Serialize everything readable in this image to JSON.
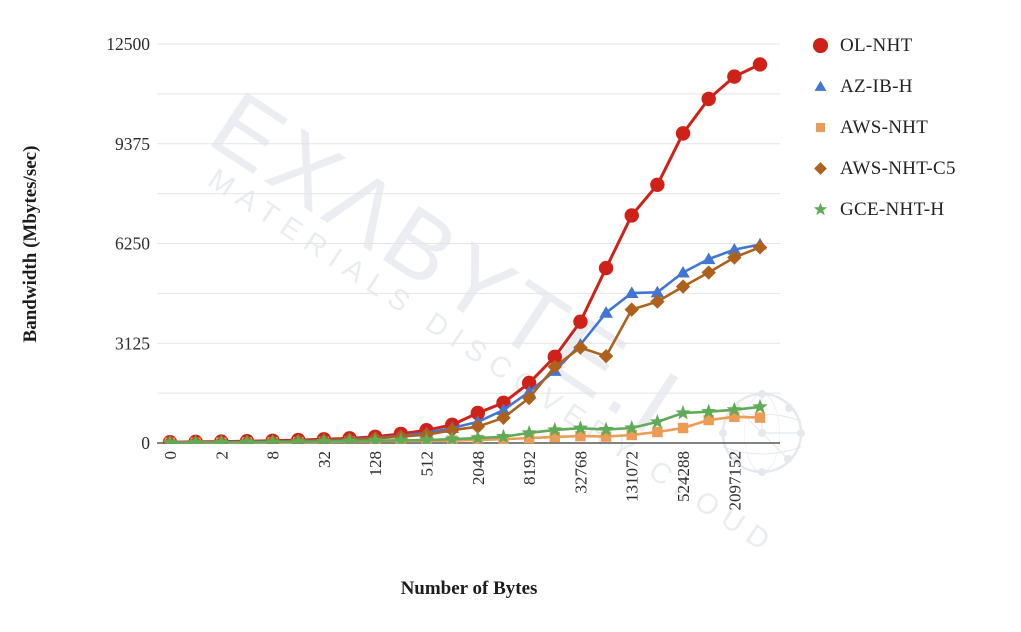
{
  "watermark": {
    "title": "EXΛBYTE.I",
    "subtitle": "MATERIALS DISCOVERY CLOUD",
    "globe_icon": "network-globe"
  },
  "chart_data": {
    "type": "line",
    "title": "",
    "xlabel": "Number of Bytes",
    "ylabel": "Bandwidth (Mbytes/sec)",
    "x_values": [
      0,
      1,
      2,
      4,
      8,
      16,
      32,
      64,
      128,
      256,
      512,
      1024,
      2048,
      4096,
      8192,
      16384,
      32768,
      65536,
      131072,
      262144,
      524288,
      1048576,
      2097152,
      4194304
    ],
    "x_tick_indices": [
      0,
      2,
      4,
      6,
      8,
      10,
      12,
      14,
      16,
      18,
      20,
      22
    ],
    "x_tick_labels": [
      "0",
      "2",
      "8",
      "32",
      "128",
      "512",
      "2048",
      "8192",
      "32768",
      "131072",
      "524288",
      "2097152"
    ],
    "y_ticks": [
      0,
      3125,
      6250,
      9375,
      12500
    ],
    "ylim": [
      0,
      12500
    ],
    "grid": "horizontal major+minor (every 1562.5), light gray, legend right, x labels rotated 90",
    "legend_position": "right",
    "series": [
      {
        "name": "OL-NHT",
        "color": "#d02119",
        "marker": "circle",
        "values": [
          25,
          35,
          45,
          55,
          70,
          90,
          115,
          145,
          195,
          285,
          400,
          570,
          940,
          1260,
          1880,
          2700,
          3800,
          5480,
          7130,
          8090,
          9700,
          10780,
          11480,
          11860
        ]
      },
      {
        "name": "AZ-IB-H",
        "color": "#4375d5",
        "marker": "triangle",
        "values": [
          15,
          20,
          28,
          38,
          50,
          65,
          85,
          115,
          155,
          225,
          315,
          470,
          660,
          1035,
          1600,
          2260,
          3080,
          4080,
          4700,
          4720,
          5340,
          5760,
          6060,
          6220
        ]
      },
      {
        "name": "AWS-NHT",
        "color": "#ed9c55",
        "marker": "square",
        "values": [
          6,
          9,
          12,
          16,
          22,
          28,
          36,
          45,
          52,
          58,
          62,
          75,
          95,
          120,
          155,
          190,
          215,
          200,
          250,
          345,
          470,
          720,
          820,
          795
        ]
      },
      {
        "name": "AWS-NHT-C5",
        "color": "#ae611d",
        "marker": "diamond",
        "values": [
          12,
          16,
          22,
          30,
          42,
          56,
          75,
          100,
          140,
          200,
          260,
          400,
          510,
          790,
          1410,
          2390,
          2990,
          2720,
          4180,
          4430,
          4900,
          5340,
          5810,
          6130
        ]
      },
      {
        "name": "GCE-NHT-H",
        "color": "#5fab57",
        "marker": "star",
        "values": [
          10,
          14,
          18,
          24,
          30,
          38,
          48,
          58,
          72,
          85,
          95,
          120,
          155,
          195,
          315,
          410,
          465,
          420,
          470,
          660,
          940,
          980,
          1040,
          1130
        ]
      }
    ]
  }
}
